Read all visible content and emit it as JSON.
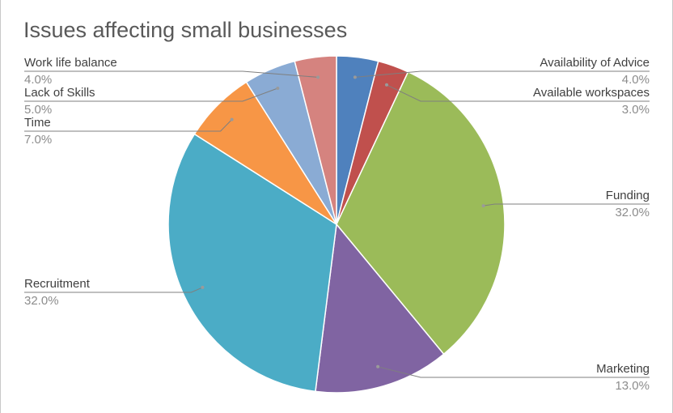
{
  "chart_data": {
    "type": "pie",
    "title": "Issues affecting small businesses",
    "slices": [
      {
        "label": "Availability of Advice",
        "value": 4.0,
        "display": "4.0%",
        "color": "#4f81bd"
      },
      {
        "label": "Available workspaces",
        "value": 3.0,
        "display": "3.0%",
        "color": "#c0504d"
      },
      {
        "label": "Funding",
        "value": 32.0,
        "display": "32.0%",
        "color": "#9bbb59"
      },
      {
        "label": "Marketing",
        "value": 13.0,
        "display": "13.0%",
        "color": "#8064a2"
      },
      {
        "label": "Recruitment",
        "value": 32.0,
        "display": "32.0%",
        "color": "#4bacc6"
      },
      {
        "label": "Time",
        "value": 7.0,
        "display": "7.0%",
        "color": "#f79646"
      },
      {
        "label": "Lack of Skills",
        "value": 5.0,
        "display": "5.0%",
        "color": "#8aabd4"
      },
      {
        "label": "Work life balance",
        "value": 4.0,
        "display": "4.0%",
        "color": "#d5837f"
      }
    ],
    "legend": "none"
  }
}
